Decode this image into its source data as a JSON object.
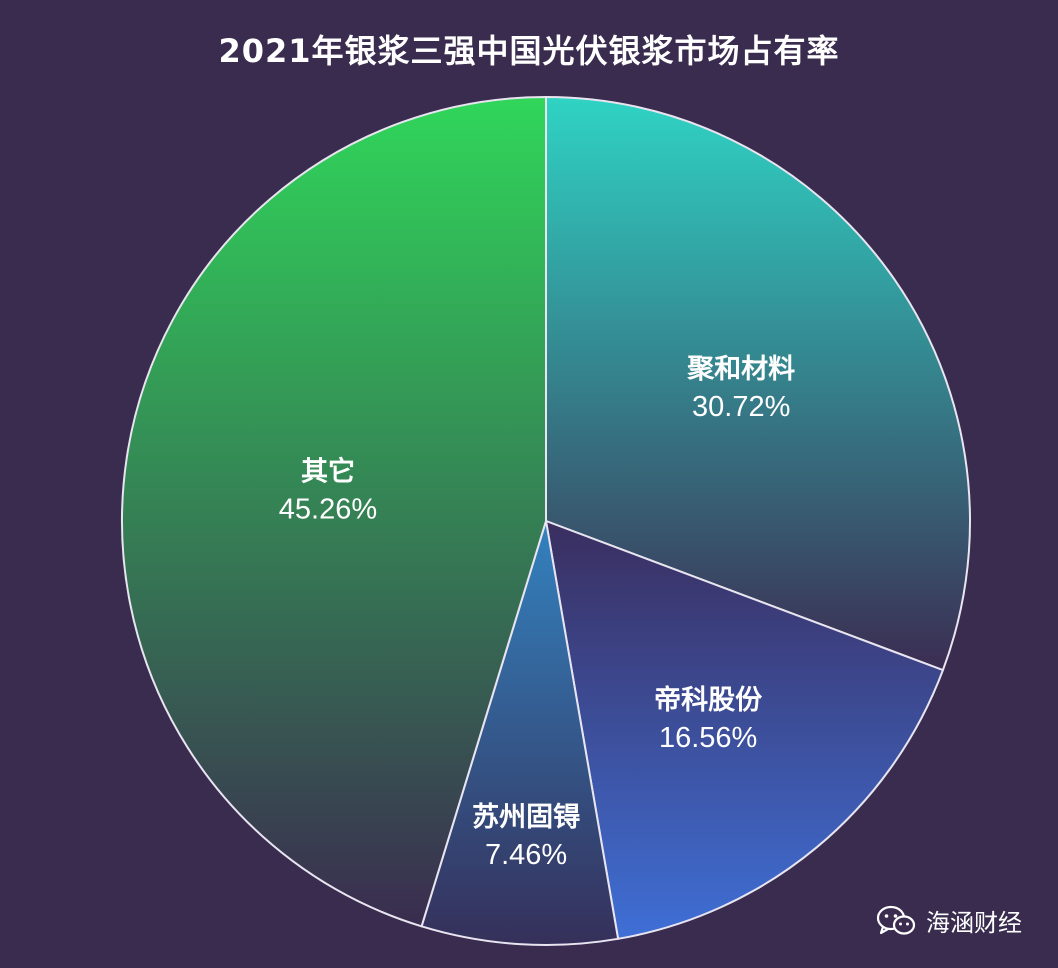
{
  "chart_data": {
    "type": "pie",
    "title": "2021年银浆三强中国光伏银浆市场占有率",
    "slices": [
      {
        "label": "聚和材料",
        "value": 30.72,
        "value_label": "30.72%",
        "color_top": "#2fd3c4",
        "color_bottom": "#3b2d52"
      },
      {
        "label": "帝科股份",
        "value": 16.56,
        "value_label": "16.56%",
        "color_top": "#3a2e5f",
        "color_bottom": "#3f6fd6"
      },
      {
        "label": "苏州固锝",
        "value": 7.46,
        "value_label": "7.46%",
        "color_top": "#3382bf",
        "color_bottom": "#35305a"
      },
      {
        "label": "其它",
        "value": 45.26,
        "value_label": "45.26%",
        "color_top": "#30d65a",
        "color_bottom": "#3a2c4f"
      }
    ]
  },
  "watermark": {
    "text": "海涵财经",
    "icon": "wechat-icon"
  },
  "colors": {
    "background": "#3a2c4f",
    "slice_border": "#e8e4f0"
  }
}
